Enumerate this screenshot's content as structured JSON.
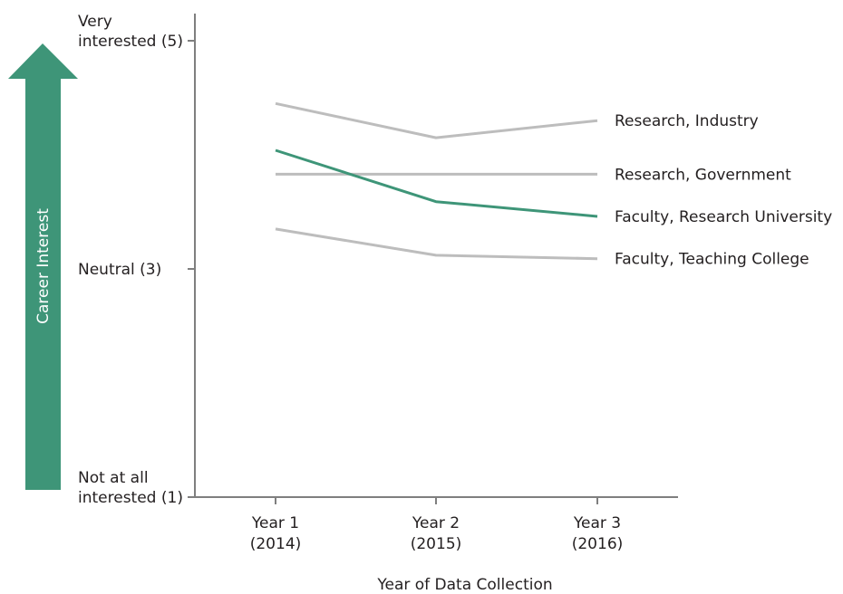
{
  "chart_data": {
    "type": "line",
    "title": "",
    "xlabel": "Year of Data Collection",
    "ylabel": "Career Interest",
    "categories": [
      [
        "Year 1",
        "(2014)"
      ],
      [
        "Year 2",
        "(2015)"
      ],
      [
        "Year 3",
        "(2016)"
      ]
    ],
    "y_ticks": [
      {
        "value": 5,
        "label": [
          "Very",
          "interested (5)"
        ]
      },
      {
        "value": 3,
        "label": [
          "Neutral (3)"
        ]
      },
      {
        "value": 1,
        "label": [
          "Not at all",
          "interested (1)"
        ]
      }
    ],
    "ylim": [
      1,
      5
    ],
    "grid": false,
    "legend": "inline labels at right end of each line",
    "series": [
      {
        "name": "Research, Industry",
        "values": [
          4.45,
          4.15,
          4.3
        ],
        "color": "#bdbdbd"
      },
      {
        "name": "Research, Government",
        "values": [
          3.83,
          3.83,
          3.83
        ],
        "color": "#bdbdbd"
      },
      {
        "name": "Faculty, Research University",
        "values": [
          4.04,
          3.59,
          3.46
        ],
        "color": "#3e9578"
      },
      {
        "name": "Faculty, Teaching College",
        "values": [
          3.35,
          3.12,
          3.09
        ],
        "color": "#bdbdbd"
      }
    ]
  },
  "colors": {
    "axis": "#7f7f7f",
    "highlight": "#3e9578",
    "muted": "#bdbdbd",
    "arrow": "#3e9578"
  }
}
